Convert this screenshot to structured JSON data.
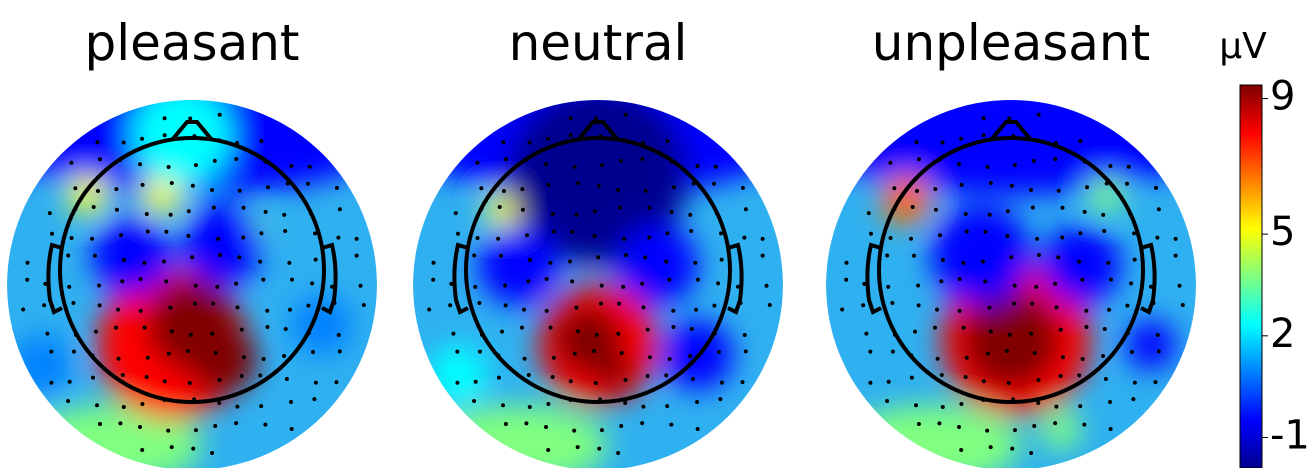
{
  "panels": [
    {
      "title": "pleasant"
    },
    {
      "title": "neutral"
    },
    {
      "title": "unpleasant"
    }
  ],
  "colorbar": {
    "unit": "μV",
    "clim": [
      -1.9,
      9.4
    ],
    "ticks": [
      9,
      5,
      2,
      -1
    ],
    "colors": [
      "#00008f",
      "#0000ff",
      "#0080ff",
      "#00ffff",
      "#80ff80",
      "#ffff00",
      "#ff8000",
      "#ff0000",
      "#800000"
    ]
  }
}
